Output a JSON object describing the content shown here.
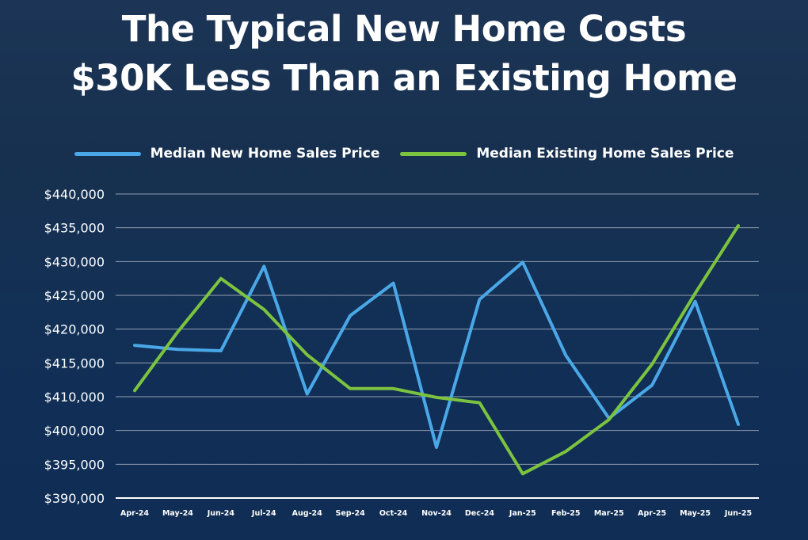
{
  "title_line1": "The Typical New Home Costs",
  "title_line2": "$30K Less Than an Existing Home",
  "chart_data": {
    "type": "line",
    "title": "The Typical New Home Costs $30K Less Than an Existing Home",
    "categories": [
      "Apr-24",
      "May-24",
      "Jun-24",
      "Jul-24",
      "Aug-24",
      "Sep-24",
      "Oct-24",
      "Nov-24",
      "Dec-24",
      "Jan-25",
      "Feb-25",
      "Mar-25",
      "Apr-25",
      "May-25",
      "Jun-25"
    ],
    "yticks": [
      "$440,000",
      "$435,000",
      "$430,000",
      "$425,000",
      "$420,000",
      "$415,000",
      "$410,000",
      "$400,000",
      "$395,000",
      "$390,000"
    ],
    "series": [
      {
        "name": "Median New Home Sales Price",
        "color": "#4aa8e8",
        "values": [
          417600,
          417000,
          416800,
          429300,
          410400,
          422000,
          426800,
          397500,
          424400,
          429900,
          416100,
          403600,
          411700,
          424100,
          401800
        ]
      },
      {
        "name": "Median Existing Home Sales Price",
        "color": "#7cc33f",
        "values": [
          410900,
          419600,
          427500,
          422900,
          416200,
          411200,
          411200,
          409800,
          408200,
          393600,
          396900,
          403200,
          414800,
          425300,
          435300
        ]
      }
    ],
    "legend_position": "top",
    "grid": true
  }
}
